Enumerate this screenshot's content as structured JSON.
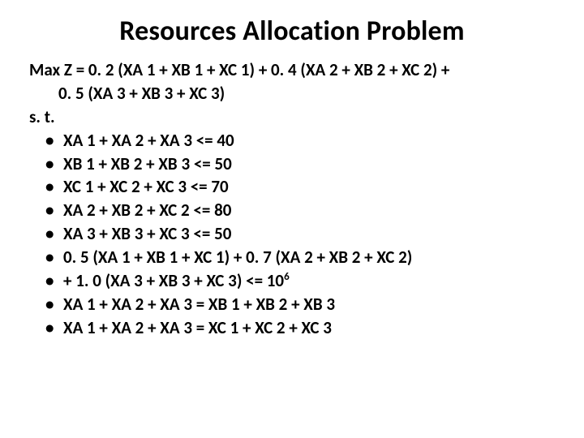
{
  "title": "Resources Allocation Problem",
  "objective": {
    "line1": "Max Z = 0. 2 (XA 1 + XB 1 + XC 1) + 0. 4 (XA 2 + XB 2 + XC 2) +",
    "line2": "0. 5 (XA 3 + XB 3 + XC 3)"
  },
  "subject_to_label": "s. t.",
  "constraints": [
    "XA 1 + XA 2 + XA 3 <= 40",
    "XB 1 + XB 2 + XB 3 <= 50",
    "XC 1 + XC 2 + XC 3 <= 70",
    "XA 2 + XB 2 + XC 2 <= 80",
    "XA 3 + XB 3 + XC 3 <= 50",
    "0. 5 (XA 1 + XB 1 + XC 1) + 0. 7 (XA 2 + XB 2 + XC 2)",
    "+ 1. 0 (XA 3 + XB 3 + XC 3) <= 10",
    "XA 1 + XA 2 + XA 3 = XB 1 + XB 2 + XB 3",
    "XA 1 + XA 2 + XA 3 = XC 1 + XC 2 + XC 3"
  ],
  "exponent_index": 6,
  "exponent_value": "6",
  "style": {
    "background_color": "#ffffff",
    "text_color": "#000000",
    "title_fontsize": 34,
    "body_fontsize": 21,
    "font_family": "Calibri",
    "font_weight_title": 700,
    "font_weight_body": 700,
    "line_height": 1.28,
    "slide_width": 720,
    "slide_height": 540
  }
}
